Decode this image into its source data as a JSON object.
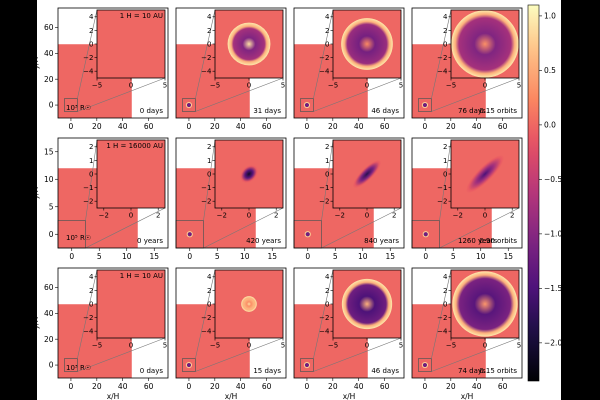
{
  "chart_data": {
    "type": "heatmap",
    "colorbar": {
      "label": "log 10 ρ/ρ₀",
      "ticks": [
        1.0,
        0.5,
        0.0,
        -0.5,
        -1.0,
        -1.5,
        -2.0
      ],
      "tick_labels": [
        "1.0",
        "0.5",
        "0.0",
        "−0.5",
        "−1.0",
        "−1.5",
        "−2.0"
      ],
      "range": [
        -2.35,
        1.1
      ],
      "colormap": "magma"
    },
    "rows": [
      {
        "ylabel": "y/H",
        "xlabel": "",
        "outer_x_ticks": [
          0,
          20,
          40,
          60
        ],
        "outer_y_ticks": [
          0,
          20,
          40,
          60
        ],
        "outer_range": [
          -10,
          75
        ],
        "inset_ticks": [
          -4,
          -2,
          0,
          2,
          4
        ],
        "inset_x_ticks": [
          -5,
          0,
          5
        ],
        "inset_range": [
          -5,
          5
        ],
        "box_label": "10³ R☉",
        "panels": [
          {
            "time": "0 days",
            "scale_label": "1 H = 10 AU",
            "orbits": "",
            "ring": null
          },
          {
            "time": "31 days",
            "scale_label": "",
            "orbits": "",
            "ring": {
              "r": 2.7,
              "w": 0.45,
              "core": 0.9,
              "inner": -0.75
            }
          },
          {
            "time": "46 days",
            "scale_label": "",
            "orbits": "",
            "ring": {
              "r": 3.4,
              "w": 0.4,
              "core": 0.25,
              "inner": -0.85
            }
          },
          {
            "time": "76 days",
            "scale_label": "",
            "orbits": "0.15 orbits",
            "ring": {
              "r": 4.5,
              "w": 0.45,
              "core": 0.3,
              "inner": -0.75
            }
          }
        ]
      },
      {
        "ylabel": "y/H",
        "xlabel": "",
        "outer_x_ticks": [
          0,
          5,
          10,
          15
        ],
        "outer_y_ticks": [
          0,
          5,
          10,
          15
        ],
        "outer_range": [
          -2.5,
          17.5
        ],
        "inset_ticks": [
          -2,
          -1,
          0,
          1,
          2
        ],
        "inset_x_ticks": [
          -2,
          0,
          2
        ],
        "inset_range": [
          -2.5,
          2.5
        ],
        "box_label": "10⁵ R☉",
        "panels": [
          {
            "time": "0 years",
            "scale_label": "1 H = 16000 AU",
            "orbits": "",
            "blob": null
          },
          {
            "time": "420 years",
            "scale_label": "",
            "orbits": "",
            "blob": {
              "a": 0.75,
              "b": 0.55,
              "depth": -2.1
            }
          },
          {
            "time": "840 years",
            "scale_label": "",
            "orbits": "",
            "blob": {
              "a": 1.4,
              "b": 0.45,
              "depth": -1.8
            }
          },
          {
            "time": "1260 years",
            "scale_label": "",
            "orbits": "0.90 orbits",
            "blob": {
              "a": 1.9,
              "b": 0.55,
              "depth": -1.5
            }
          }
        ]
      },
      {
        "ylabel": "y/H",
        "xlabel": "x/H",
        "outer_x_ticks": [
          0,
          20,
          40,
          60
        ],
        "outer_y_ticks": [
          0,
          20,
          40,
          60
        ],
        "outer_range": [
          -10,
          75
        ],
        "inset_ticks": [
          -4,
          -2,
          0,
          2,
          4
        ],
        "inset_x_ticks": [
          -5,
          0,
          5
        ],
        "inset_range": [
          -5,
          5
        ],
        "box_label": "10³ R☉",
        "panels": [
          {
            "time": "0 days",
            "scale_label": "1 H = 10 AU",
            "orbits": "",
            "ring": null
          },
          {
            "time": "15 days",
            "scale_label": "",
            "orbits": "",
            "ring": {
              "r": 0.9,
              "w": 0.25,
              "core": 0.9,
              "inner": 0.6
            }
          },
          {
            "time": "46 days",
            "scale_label": "",
            "orbits": "",
            "ring": {
              "r": 3.3,
              "w": 0.4,
              "core": 0.55,
              "inner": -1.2
            }
          },
          {
            "time": "74 days",
            "scale_label": "",
            "orbits": "0.15 orbits",
            "ring": {
              "r": 4.4,
              "w": 0.4,
              "core": 0.35,
              "inner": -1.1
            }
          }
        ]
      }
    ]
  }
}
